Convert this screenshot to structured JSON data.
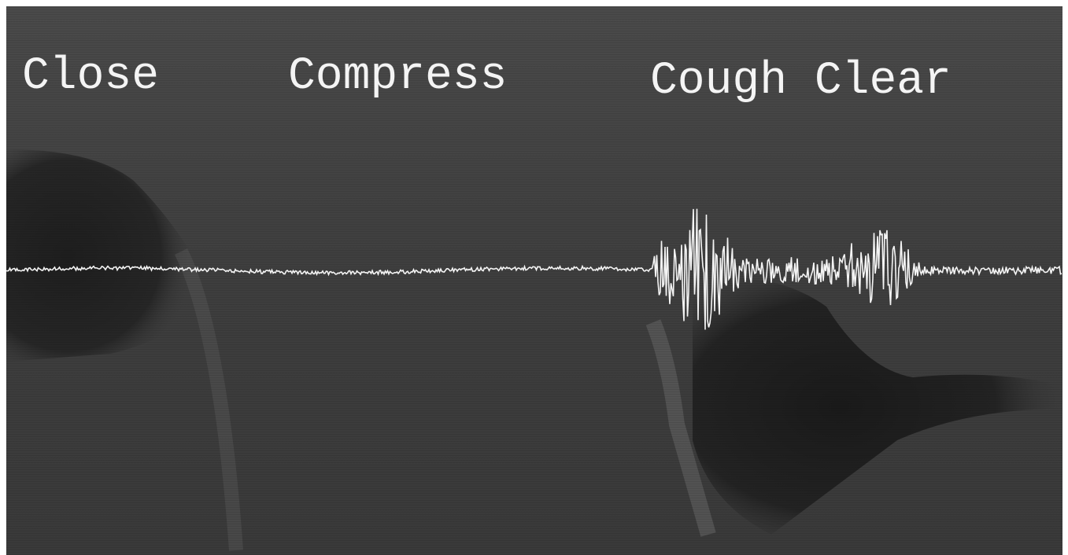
{
  "labels": [
    "Close",
    "Compress",
    "Cough Clear"
  ]
}
